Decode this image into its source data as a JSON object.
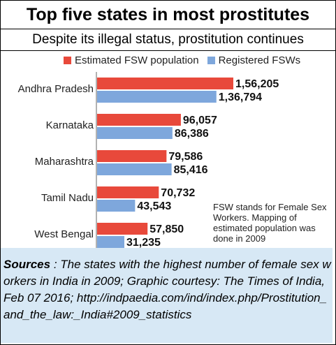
{
  "title": "Top five states in most prostitutes",
  "subtitle": "Despite its illegal status, prostitution continues",
  "note": "FSW stands for Female Sex Workers. Mapping of estimated population was done in 2009",
  "sources": {
    "label": "Sources",
    "separator": " : ",
    "text": "The states with the highest number of female sex workers in India in 2009; Graphic courtesy: The Times of India,Feb 07 2016; http://indpaedia.com/ind/index.php/Prostitution_and_the_law:_India#2009_statistics"
  },
  "colors": {
    "estimated": "#e8493b",
    "registered": "#7ea7dc"
  },
  "chart_data": {
    "type": "bar",
    "orientation": "horizontal",
    "categories": [
      "Andhra Pradesh",
      "Karnataka",
      "Maharashtra",
      "Tamil Nadu",
      "West Bengal"
    ],
    "series": [
      {
        "name": "Estimated FSW population",
        "values": [
          156205,
          96057,
          79586,
          70732,
          57850
        ],
        "labels": [
          "1,56,205",
          "96,057",
          "79,586",
          "70,732",
          "57,850"
        ]
      },
      {
        "name": "Registered FSWs",
        "values": [
          136794,
          86386,
          85416,
          43543,
          31235
        ],
        "labels": [
          "1,36,794",
          "86,386",
          "85,416",
          "43,543",
          "31,235"
        ]
      }
    ],
    "legend": "top",
    "grid": false,
    "xlim": [
      0,
      156205
    ]
  }
}
